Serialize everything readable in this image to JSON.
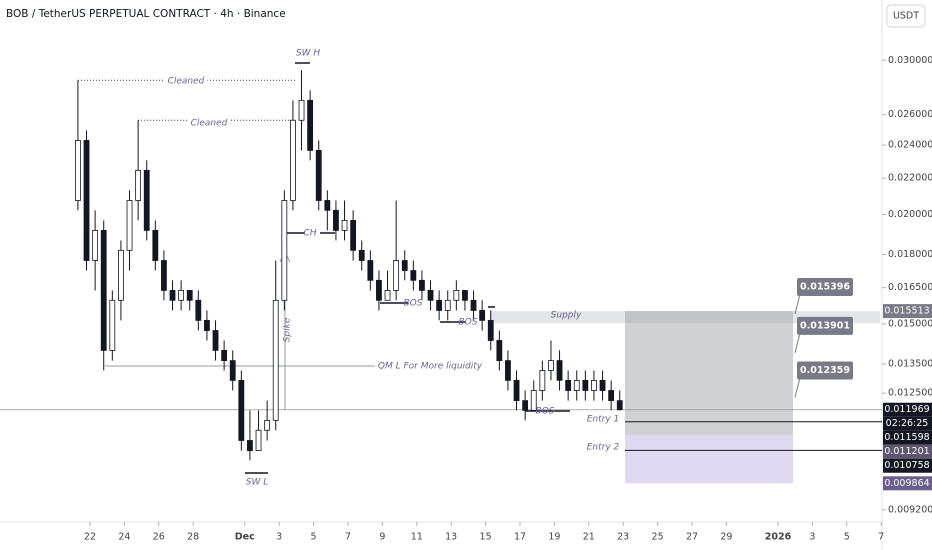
{
  "chart_data": {
    "type": "candlestick",
    "title": "BOB / TetherUS PERPETUAL CONTRACT · 4h · Binance",
    "currency": "USDT",
    "log_scale": true,
    "x": [
      -0.7,
      -0.2,
      0.3,
      0.8,
      1.3,
      1.8,
      2.3,
      2.8,
      3.3,
      3.8,
      4.3,
      4.8,
      5.3,
      5.8,
      6.3,
      6.8,
      7.3,
      7.8,
      8.3,
      8.8,
      9.3,
      9.8,
      10.3,
      10.8,
      11.3,
      11.8,
      12.3,
      12.8,
      13.3,
      13.8,
      14.3,
      14.8,
      15.3,
      15.8,
      16.3,
      16.8,
      17.3,
      17.8,
      18.3,
      18.8,
      19.3,
      19.8,
      20.3,
      20.8,
      21.3,
      21.8,
      22.3,
      22.8,
      23.3,
      23.8,
      24.3,
      24.8,
      25.3,
      25.8,
      26.3,
      26.8,
      27.3,
      27.8,
      28.3,
      28.8,
      29.3,
      29.8,
      30.3,
      30.8
    ],
    "open": [
      0.02075,
      0.0243,
      0.01772,
      0.01918,
      0.01399,
      0.01596,
      0.0182,
      0.02075,
      0.02246,
      0.01918,
      0.01772,
      0.01638,
      0.01596,
      0.01638,
      0.01596,
      0.01514,
      0.01474,
      0.01399,
      0.01362,
      0.01293,
      0.01104,
      0.01075,
      0.01134,
      0.01164,
      0.01596,
      0.02075,
      0.02562,
      0.027,
      0.02367,
      0.02075,
      0.02022,
      0.01918,
      0.01969,
      0.0182,
      0.01772,
      0.01682,
      0.01596,
      0.01638,
      0.01772,
      0.01726,
      0.01682,
      0.01638,
      0.01596,
      0.01554,
      0.01596,
      0.01638,
      0.01596,
      0.01554,
      0.01514,
      0.01436,
      0.01362,
      0.01293,
      0.01226,
      0.01195,
      0.01259,
      0.01327,
      0.01362,
      0.01293,
      0.01259,
      0.01293,
      0.01259,
      0.01293,
      0.01259,
      0.01226
    ],
    "high": [
      0.02846,
      0.02495,
      0.02022,
      0.01969,
      0.01638,
      0.01868,
      0.02131,
      0.02562,
      0.02306,
      0.01969,
      0.0182,
      0.01682,
      0.01682,
      0.01638,
      0.01638,
      0.01554,
      0.01514,
      0.01436,
      0.01399,
      0.01327,
      0.01195,
      0.01195,
      0.01226,
      0.01772,
      0.02131,
      0.027,
      0.02922,
      0.02772,
      0.0243,
      0.02131,
      0.02075,
      0.02075,
      0.02022,
      0.01868,
      0.0182,
      0.01726,
      0.01726,
      0.02075,
      0.0182,
      0.01772,
      0.01726,
      0.01682,
      0.01638,
      0.01638,
      0.01682,
      0.01638,
      0.01638,
      0.01596,
      0.01554,
      0.01474,
      0.01399,
      0.01327,
      0.01259,
      0.01293,
      0.01362,
      0.01436,
      0.01399,
      0.01327,
      0.01327,
      0.01327,
      0.01327,
      0.01327,
      0.01293,
      0.01259
    ],
    "low": [
      0.02022,
      0.01726,
      0.01638,
      0.01327,
      0.01362,
      0.01514,
      0.01726,
      0.01969,
      0.01868,
      0.01726,
      0.01596,
      0.01554,
      0.01554,
      0.01554,
      0.01474,
      0.01436,
      0.01362,
      0.01327,
      0.01259,
      0.01075,
      0.01048,
      0.01075,
      0.01104,
      0.01134,
      0.01554,
      0.02022,
      0.02367,
      0.02306,
      0.02022,
      0.01918,
      0.01868,
      0.01868,
      0.01772,
      0.01726,
      0.01638,
      0.01554,
      0.01596,
      0.01596,
      0.01682,
      0.01638,
      0.01596,
      0.01554,
      0.01514,
      0.01514,
      0.01554,
      0.01554,
      0.01514,
      0.01474,
      0.01399,
      0.01327,
      0.01259,
      0.01195,
      0.01164,
      0.01195,
      0.01226,
      0.01293,
      0.01259,
      0.01226,
      0.01226,
      0.01226,
      0.01226,
      0.01226,
      0.01195,
      0.01195
    ],
    "close": [
      0.0243,
      0.01772,
      0.01918,
      0.01399,
      0.01596,
      0.0182,
      0.02075,
      0.02246,
      0.01918,
      0.01772,
      0.01638,
      0.01596,
      0.01638,
      0.01596,
      0.01514,
      0.01474,
      0.01399,
      0.01362,
      0.01293,
      0.01104,
      0.01075,
      0.01134,
      0.01164,
      0.01596,
      0.02075,
      0.02562,
      0.027,
      0.02367,
      0.02075,
      0.02022,
      0.01918,
      0.01969,
      0.0182,
      0.01772,
      0.01682,
      0.01596,
      0.01638,
      0.01772,
      0.01726,
      0.01682,
      0.01638,
      0.01596,
      0.01554,
      0.01596,
      0.01638,
      0.01596,
      0.01554,
      0.01514,
      0.01436,
      0.01362,
      0.01293,
      0.01226,
      0.01195,
      0.01259,
      0.01327,
      0.01362,
      0.01293,
      0.01259,
      0.01293,
      0.01259,
      0.01293,
      0.01259,
      0.01226,
      0.011969
    ],
    "xlim": [
      -5.23,
      45.93
    ],
    "xticks": [
      {
        "value": 0,
        "label": "22"
      },
      {
        "value": 2,
        "label": "24"
      },
      {
        "value": 4,
        "label": "26"
      },
      {
        "value": 6,
        "label": "28"
      },
      {
        "value": 9,
        "label": "Dec"
      },
      {
        "value": 11,
        "label": "3"
      },
      {
        "value": 13,
        "label": "5"
      },
      {
        "value": 15,
        "label": "7"
      },
      {
        "value": 17,
        "label": "9"
      },
      {
        "value": 19,
        "label": "11"
      },
      {
        "value": 21,
        "label": "13"
      },
      {
        "value": 23,
        "label": "15"
      },
      {
        "value": 25,
        "label": "17"
      },
      {
        "value": 27,
        "label": "19"
      },
      {
        "value": 29,
        "label": "21"
      },
      {
        "value": 31,
        "label": "23"
      },
      {
        "value": 33,
        "label": "25"
      },
      {
        "value": 35,
        "label": "27"
      },
      {
        "value": 37,
        "label": "29"
      },
      {
        "value": 40,
        "label": "2026"
      },
      {
        "value": 42,
        "label": "3"
      },
      {
        "value": 44,
        "label": "5"
      },
      {
        "value": 46,
        "label": "7"
      }
    ],
    "ylim": [
      0.00891,
      0.03515
    ],
    "yticks": [
      {
        "value": 0.03,
        "label": "0.030000"
      },
      {
        "value": 0.026,
        "label": "0.026000"
      },
      {
        "value": 0.024,
        "label": "0.024000"
      },
      {
        "value": 0.022,
        "label": "0.022000"
      },
      {
        "value": 0.02,
        "label": "0.020000"
      },
      {
        "value": 0.018,
        "label": "0.018000"
      },
      {
        "value": 0.0165,
        "label": "0.016500"
      },
      {
        "value": 0.015,
        "label": "0.015000"
      },
      {
        "value": 0.0135,
        "label": "0.013500"
      },
      {
        "value": 0.0125,
        "label": "0.012500"
      },
      {
        "value": 0.0092,
        "label": "0.009200"
      }
    ],
    "price_tags": [
      {
        "value": 0.015513,
        "color": "#787b86"
      },
      {
        "value": 0.011969,
        "color": "#131722"
      },
      {
        "value": 0.011598,
        "color": "#131722"
      },
      {
        "value": 0.011201,
        "color": "#5e5570"
      },
      {
        "value": 0.010758,
        "color": "#131722"
      },
      {
        "value": 0.009864,
        "color": "#6b5d8c"
      }
    ],
    "countdown": "02:26:25",
    "targets": [
      0.015396,
      0.013901,
      0.012359
    ],
    "annotations": [
      "Cleaned",
      "Cleaned",
      "SW H",
      "CH",
      "BOS",
      "BOS",
      "BOS",
      "QM L For More liquidity",
      "Spike",
      "SW L",
      "Supply",
      "Entry 1",
      "Entry 2"
    ]
  }
}
